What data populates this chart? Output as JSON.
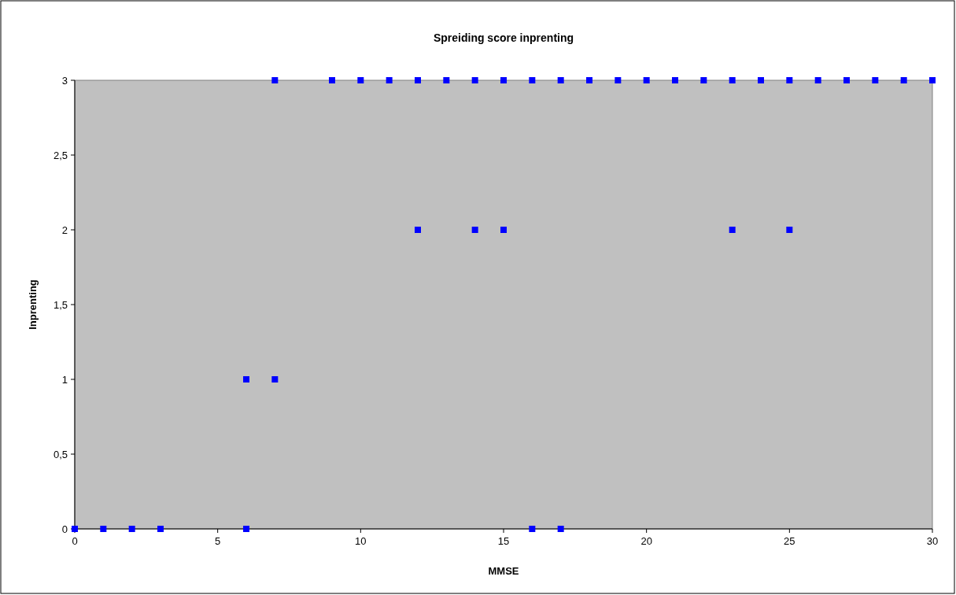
{
  "chart_data": {
    "type": "scatter",
    "title": "Spreiding score inprenting",
    "xlabel": "MMSE",
    "ylabel": "Inprenting",
    "x": [
      0,
      1,
      2,
      3,
      6,
      6,
      7,
      7,
      9,
      10,
      11,
      12,
      12,
      13,
      14,
      14,
      15,
      15,
      16,
      16,
      17,
      17,
      18,
      19,
      20,
      21,
      22,
      23,
      23,
      24,
      25,
      25,
      26,
      27,
      28,
      29,
      30
    ],
    "series": [
      {
        "color": "#0000ff",
        "values": [
          0,
          0,
          0,
          0,
          0,
          1,
          1,
          3,
          3,
          3,
          3,
          3,
          2,
          3,
          3,
          2,
          3,
          2,
          3,
          0,
          3,
          0,
          3,
          3,
          3,
          3,
          3,
          3,
          2,
          3,
          3,
          2,
          3,
          3,
          3,
          3,
          3
        ]
      }
    ],
    "xlim": [
      0,
      30
    ],
    "xticks": [
      0,
      5,
      10,
      15,
      20,
      25,
      30
    ],
    "ylim": [
      0,
      3
    ],
    "yticks": [
      0,
      {
        "value": 0.5,
        "label": "0,5"
      },
      1,
      {
        "value": 1.5,
        "label": "1,5"
      },
      2,
      {
        "value": 2.5,
        "label": "2,5"
      },
      3
    ],
    "marker": "square",
    "grid": false
  }
}
